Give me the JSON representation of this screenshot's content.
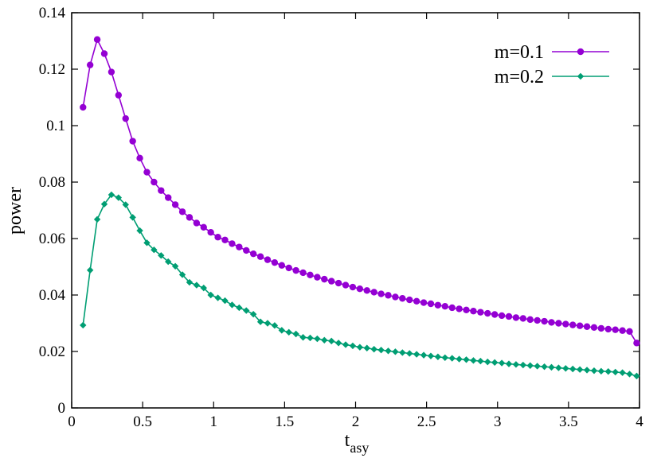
{
  "chart_data": {
    "type": "line",
    "title": "",
    "xlabel": "t",
    "xlabel_subscript": "asy",
    "ylabel": "power",
    "xlim": [
      0,
      4
    ],
    "ylim": [
      0,
      0.14
    ],
    "x_ticks": [
      "0",
      "0.5",
      "1",
      "1.5",
      "2",
      "2.5",
      "3",
      "3.5",
      "4"
    ],
    "y_ticks": [
      "0",
      "0.02",
      "0.04",
      "0.06",
      "0.08",
      "0.1",
      "0.12",
      "0.14"
    ],
    "grid": false,
    "legend_position": "top-right",
    "series": [
      {
        "name": "m=0.1",
        "color": "#9400d3",
        "marker": "circle",
        "points": [
          [
            0.08,
            0.1065
          ],
          [
            0.13,
            0.1215
          ],
          [
            0.18,
            0.1305
          ],
          [
            0.23,
            0.1255
          ],
          [
            0.28,
            0.119
          ],
          [
            0.33,
            0.1108
          ],
          [
            0.38,
            0.1025
          ],
          [
            0.43,
            0.0945
          ],
          [
            0.48,
            0.0885
          ],
          [
            0.53,
            0.0835
          ],
          [
            0.58,
            0.08
          ],
          [
            0.63,
            0.077
          ],
          [
            0.68,
            0.0745
          ],
          [
            0.73,
            0.072
          ],
          [
            0.78,
            0.0695
          ],
          [
            0.83,
            0.0675
          ],
          [
            0.88,
            0.0655
          ],
          [
            0.93,
            0.064
          ],
          [
            0.98,
            0.0622
          ],
          [
            1.03,
            0.0605
          ],
          [
            1.08,
            0.0595
          ],
          [
            1.13,
            0.0582
          ],
          [
            1.18,
            0.057
          ],
          [
            1.23,
            0.0558
          ],
          [
            1.28,
            0.0546
          ],
          [
            1.33,
            0.0536
          ],
          [
            1.38,
            0.0525
          ],
          [
            1.43,
            0.0515
          ],
          [
            1.48,
            0.0505
          ],
          [
            1.53,
            0.0496
          ],
          [
            1.58,
            0.0487
          ],
          [
            1.63,
            0.0479
          ],
          [
            1.68,
            0.0471
          ],
          [
            1.73,
            0.0463
          ],
          [
            1.78,
            0.0456
          ],
          [
            1.83,
            0.0449
          ],
          [
            1.88,
            0.0442
          ],
          [
            1.93,
            0.0435
          ],
          [
            1.98,
            0.0428
          ],
          [
            2.03,
            0.0422
          ],
          [
            2.08,
            0.0416
          ],
          [
            2.13,
            0.041
          ],
          [
            2.18,
            0.0404
          ],
          [
            2.23,
            0.0399
          ],
          [
            2.28,
            0.0393
          ],
          [
            2.33,
            0.0388
          ],
          [
            2.38,
            0.0383
          ],
          [
            2.43,
            0.0378
          ],
          [
            2.48,
            0.0373
          ],
          [
            2.53,
            0.0369
          ],
          [
            2.58,
            0.0364
          ],
          [
            2.63,
            0.036
          ],
          [
            2.68,
            0.0355
          ],
          [
            2.73,
            0.0351
          ],
          [
            2.78,
            0.0347
          ],
          [
            2.83,
            0.0343
          ],
          [
            2.88,
            0.0339
          ],
          [
            2.93,
            0.0335
          ],
          [
            2.98,
            0.0331
          ],
          [
            3.03,
            0.0327
          ],
          [
            3.08,
            0.0324
          ],
          [
            3.13,
            0.032
          ],
          [
            3.18,
            0.0317
          ],
          [
            3.23,
            0.0313
          ],
          [
            3.28,
            0.031
          ],
          [
            3.33,
            0.0307
          ],
          [
            3.38,
            0.0303
          ],
          [
            3.43,
            0.03
          ],
          [
            3.48,
            0.0297
          ],
          [
            3.53,
            0.0294
          ],
          [
            3.58,
            0.0291
          ],
          [
            3.63,
            0.0288
          ],
          [
            3.68,
            0.0285
          ],
          [
            3.73,
            0.0282
          ],
          [
            3.78,
            0.0279
          ],
          [
            3.83,
            0.0277
          ],
          [
            3.88,
            0.0274
          ],
          [
            3.93,
            0.0271
          ],
          [
            3.98,
            0.023
          ]
        ]
      },
      {
        "name": "m=0.2",
        "color": "#009e73",
        "marker": "diamond",
        "points": [
          [
            0.08,
            0.0293
          ],
          [
            0.13,
            0.0488
          ],
          [
            0.18,
            0.0668
          ],
          [
            0.23,
            0.0722
          ],
          [
            0.28,
            0.0755
          ],
          [
            0.33,
            0.0745
          ],
          [
            0.38,
            0.072
          ],
          [
            0.43,
            0.0675
          ],
          [
            0.48,
            0.0628
          ],
          [
            0.53,
            0.0585
          ],
          [
            0.58,
            0.056
          ],
          [
            0.63,
            0.054
          ],
          [
            0.68,
            0.0518
          ],
          [
            0.73,
            0.0502
          ],
          [
            0.78,
            0.0472
          ],
          [
            0.83,
            0.0445
          ],
          [
            0.88,
            0.0435
          ],
          [
            0.93,
            0.0425
          ],
          [
            0.98,
            0.04
          ],
          [
            1.03,
            0.039
          ],
          [
            1.08,
            0.038
          ],
          [
            1.13,
            0.0365
          ],
          [
            1.18,
            0.0355
          ],
          [
            1.23,
            0.0345
          ],
          [
            1.28,
            0.0332
          ],
          [
            1.33,
            0.0305
          ],
          [
            1.38,
            0.03
          ],
          [
            1.43,
            0.0292
          ],
          [
            1.48,
            0.0275
          ],
          [
            1.53,
            0.0268
          ],
          [
            1.58,
            0.0262
          ],
          [
            1.63,
            0.025
          ],
          [
            1.68,
            0.0248
          ],
          [
            1.73,
            0.0245
          ],
          [
            1.78,
            0.024
          ],
          [
            1.83,
            0.0237
          ],
          [
            1.88,
            0.023
          ],
          [
            1.93,
            0.0224
          ],
          [
            1.98,
            0.022
          ],
          [
            2.03,
            0.0215
          ],
          [
            2.08,
            0.0212
          ],
          [
            2.13,
            0.0208
          ],
          [
            2.18,
            0.0205
          ],
          [
            2.23,
            0.0202
          ],
          [
            2.28,
            0.0199
          ],
          [
            2.33,
            0.0196
          ],
          [
            2.38,
            0.0193
          ],
          [
            2.43,
            0.019
          ],
          [
            2.48,
            0.0187
          ],
          [
            2.53,
            0.0184
          ],
          [
            2.58,
            0.0181
          ],
          [
            2.63,
            0.0178
          ],
          [
            2.68,
            0.0176
          ],
          [
            2.73,
            0.0173
          ],
          [
            2.78,
            0.0171
          ],
          [
            2.83,
            0.0168
          ],
          [
            2.88,
            0.0166
          ],
          [
            2.93,
            0.0163
          ],
          [
            2.98,
            0.0161
          ],
          [
            3.03,
            0.0159
          ],
          [
            3.08,
            0.0156
          ],
          [
            3.13,
            0.0154
          ],
          [
            3.18,
            0.0152
          ],
          [
            3.23,
            0.015
          ],
          [
            3.28,
            0.0148
          ],
          [
            3.33,
            0.0146
          ],
          [
            3.38,
            0.0144
          ],
          [
            3.43,
            0.0142
          ],
          [
            3.48,
            0.014
          ],
          [
            3.53,
            0.0138
          ],
          [
            3.58,
            0.0136
          ],
          [
            3.63,
            0.0134
          ],
          [
            3.68,
            0.0132
          ],
          [
            3.73,
            0.013
          ],
          [
            3.78,
            0.0129
          ],
          [
            3.83,
            0.0127
          ],
          [
            3.88,
            0.0125
          ],
          [
            3.93,
            0.012
          ],
          [
            3.98,
            0.0113
          ]
        ]
      }
    ]
  }
}
